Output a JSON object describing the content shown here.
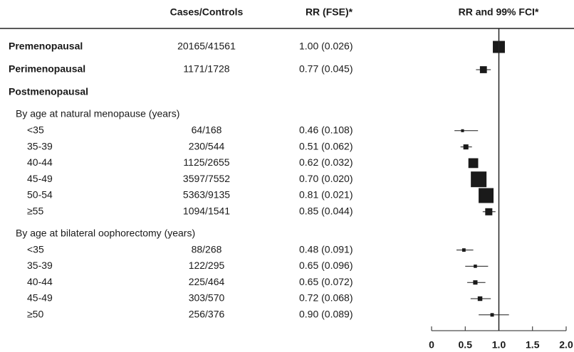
{
  "chart_data": {
    "type": "forest",
    "columns": [
      "Cases/Controls",
      "RR (FSE)*",
      "RR and 99% FCI*"
    ],
    "rows": [
      {
        "label": "Premenopausal",
        "level": 0,
        "cases": "20165/41561",
        "rr_text": "1.00 (0.026)",
        "rr": 1.0,
        "fse": 0.026,
        "ci": [
          0.93,
          1.07
        ]
      },
      {
        "label": "Perimenopausal",
        "level": 0,
        "cases": "1171/1728",
        "rr_text": "0.77 (0.045)",
        "rr": 0.77,
        "fse": 0.045,
        "ci": [
          0.66,
          0.88
        ]
      },
      {
        "label": "Postmenopausal",
        "level": 0
      },
      {
        "label": "By age at natural menopause (years)",
        "level": 1
      },
      {
        "label": "<35",
        "level": 2,
        "cases": "64/168",
        "rr_text": "0.46 (0.108)",
        "rr": 0.46,
        "fse": 0.108,
        "ci": [
          0.34,
          0.69
        ]
      },
      {
        "label": "35-39",
        "level": 2,
        "cases": "230/544",
        "rr_text": "0.51 (0.062)",
        "rr": 0.51,
        "fse": 0.062,
        "ci": [
          0.43,
          0.6
        ]
      },
      {
        "label": "40-44",
        "level": 2,
        "cases": "1125/2655",
        "rr_text": "0.62 (0.032)",
        "rr": 0.62,
        "fse": 0.032,
        "ci": [
          0.57,
          0.67
        ]
      },
      {
        "label": "45-49",
        "level": 2,
        "cases": "3597/7552",
        "rr_text": "0.70 (0.020)",
        "rr": 0.7,
        "fse": 0.02,
        "ci": [
          0.65,
          0.75
        ]
      },
      {
        "label": "50-54",
        "level": 2,
        "cases": "5363/9135",
        "rr_text": "0.81 (0.021)",
        "rr": 0.81,
        "fse": 0.021,
        "ci": [
          0.76,
          0.86
        ]
      },
      {
        "label": "≥55",
        "level": 2,
        "cases": "1094/1541",
        "rr_text": "0.85 (0.044)",
        "rr": 0.85,
        "fse": 0.044,
        "ci": [
          0.76,
          0.95
        ]
      },
      {
        "label": "By age at bilateral oophorectomy (years)",
        "level": 1
      },
      {
        "label": "<35",
        "level": 2,
        "cases": "88/268",
        "rr_text": "0.48 (0.091)",
        "rr": 0.48,
        "fse": 0.091,
        "ci": [
          0.37,
          0.62
        ]
      },
      {
        "label": "35-39",
        "level": 2,
        "cases": "122/295",
        "rr_text": "0.65 (0.096)",
        "rr": 0.65,
        "fse": 0.096,
        "ci": [
          0.5,
          0.84
        ]
      },
      {
        "label": "40-44",
        "level": 2,
        "cases": "225/464",
        "rr_text": "0.65 (0.072)",
        "rr": 0.65,
        "fse": 0.072,
        "ci": [
          0.53,
          0.8
        ]
      },
      {
        "label": "45-49",
        "level": 2,
        "cases": "303/570",
        "rr_text": "0.72 (0.068)",
        "rr": 0.72,
        "fse": 0.068,
        "ci": [
          0.58,
          0.88
        ]
      },
      {
        "label": "≥50",
        "level": 2,
        "cases": "256/376",
        "rr_text": "0.90 (0.089)",
        "rr": 0.9,
        "fse": 0.089,
        "ci": [
          0.7,
          1.15
        ]
      }
    ],
    "xlim": [
      0,
      2
    ],
    "xticks": [
      0,
      0.5,
      {
        "value": 1,
        "label": "1.0"
      },
      1.5,
      {
        "value": 2,
        "label": "2.0"
      }
    ],
    "reference": 1,
    "color": "#1a1a1a"
  }
}
